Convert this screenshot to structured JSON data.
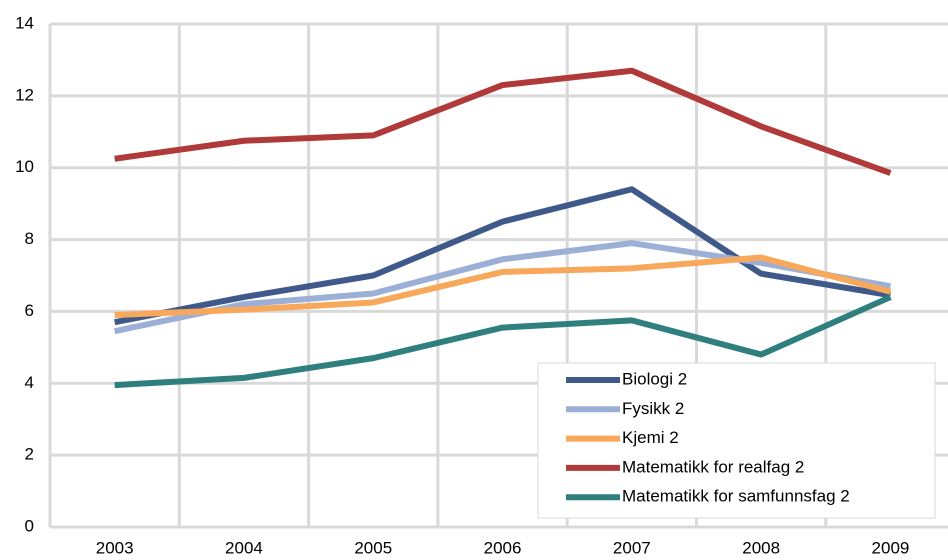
{
  "chart_data": {
    "type": "line",
    "categories": [
      "2003",
      "2004",
      "2005",
      "2006",
      "2007",
      "2008",
      "2009"
    ],
    "series": [
      {
        "name": "Biologi 2",
        "color": "#3f5a8a",
        "values": [
          5.7,
          6.4,
          7.0,
          8.5,
          9.4,
          7.05,
          6.45
        ]
      },
      {
        "name": "Fysikk 2",
        "color": "#9cafd6",
        "values": [
          5.45,
          6.2,
          6.5,
          7.45,
          7.9,
          7.35,
          6.7
        ]
      },
      {
        "name": "Kjemi 2",
        "color": "#f8a85a",
        "values": [
          5.9,
          6.05,
          6.25,
          7.1,
          7.2,
          7.5,
          6.55
        ]
      },
      {
        "name": "Matematikk for realfag 2",
        "color": "#b0393a",
        "values": [
          10.25,
          10.75,
          10.9,
          12.3,
          12.7,
          11.15,
          9.85
        ]
      },
      {
        "name": "Matematikk for samfunnsfag 2",
        "color": "#2e7f7e",
        "values": [
          3.95,
          4.15,
          4.7,
          5.55,
          5.75,
          4.8,
          6.4
        ]
      }
    ],
    "ylim": [
      0,
      14
    ],
    "yticks": [
      0,
      2,
      4,
      6,
      8,
      10,
      12,
      14
    ],
    "grid": true
  }
}
